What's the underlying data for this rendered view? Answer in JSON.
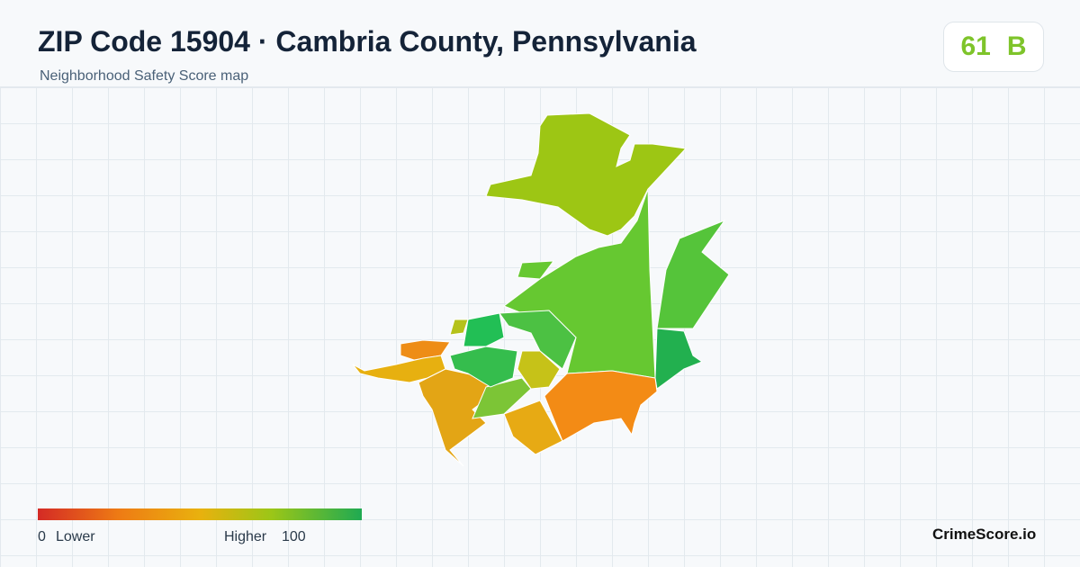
{
  "header": {
    "title": "ZIP Code 15904 · Cambria County, Pennsylvania",
    "subtitle": "Neighborhood Safety Score map"
  },
  "score": {
    "value": "61",
    "grade": "B"
  },
  "legend": {
    "min": "0",
    "min_label": "Lower",
    "max_label": "Higher",
    "max": "100"
  },
  "brand": "CrimeScore.io"
}
